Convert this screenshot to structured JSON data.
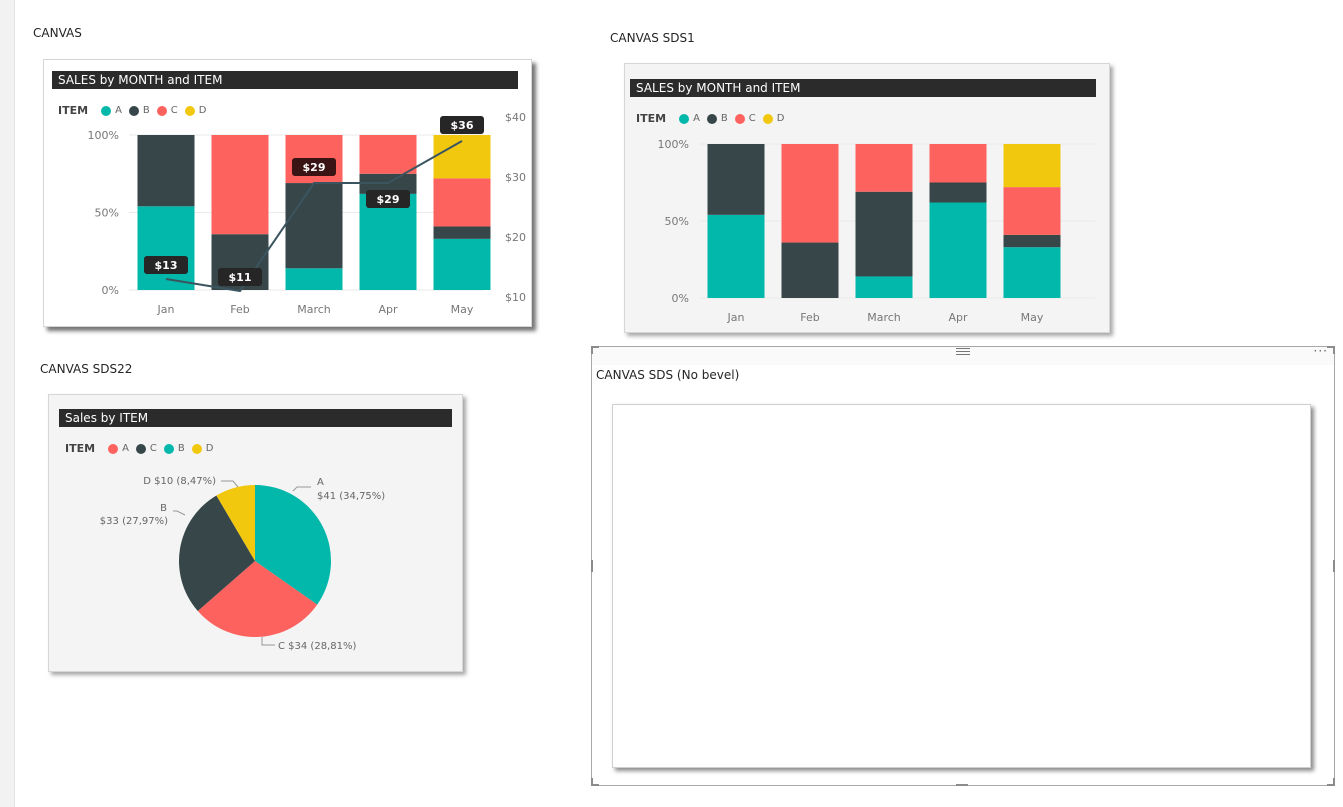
{
  "labels": {
    "canvas": "CANVAS",
    "canvas_sds1": "CANVAS SDS1",
    "canvas_sds22": "CANVAS SDS22",
    "canvas_sds_nobevel": "CANVAS SDS (No bevel)"
  },
  "more_options": "···",
  "colors": {
    "A": "#01b8aa",
    "B": "#374649",
    "C": "#fd625e",
    "D": "#f2c80f",
    "line": "#3b5560",
    "title_bg": "#2b2b2b"
  },
  "chart_data": [
    {
      "type": "bar",
      "stacked": "100%",
      "title": "SALES by MONTH and ITEM",
      "legend_title": "ITEM",
      "legend": [
        "A",
        "B",
        "C",
        "D"
      ],
      "categories": [
        "Jan",
        "Feb",
        "March",
        "Apr",
        "May"
      ],
      "y_ticks": [
        "100%",
        "50%",
        "0%"
      ],
      "y2_ticks": [
        "$40",
        "$30",
        "$20",
        "$10"
      ],
      "ylim": [
        0,
        100
      ],
      "y2lim": [
        10,
        40
      ],
      "series": [
        {
          "name": "A",
          "values": [
            54,
            0,
            14,
            62,
            33
          ]
        },
        {
          "name": "B",
          "values": [
            46,
            36,
            55,
            13,
            8
          ]
        },
        {
          "name": "C",
          "values": [
            0,
            64,
            31,
            25,
            31
          ]
        },
        {
          "name": "D",
          "values": [
            0,
            0,
            0,
            0,
            28
          ]
        }
      ],
      "line": {
        "values": [
          13,
          11,
          29,
          29,
          36
        ],
        "labels": [
          "$13",
          "$11",
          "$29",
          "$29",
          "$36"
        ]
      }
    },
    {
      "type": "bar",
      "stacked": "100%",
      "title": "SALES by MONTH and ITEM",
      "legend_title": "ITEM",
      "legend": [
        "A",
        "B",
        "C",
        "D"
      ],
      "categories": [
        "Jan",
        "Feb",
        "March",
        "Apr",
        "May"
      ],
      "y_ticks": [
        "100%",
        "50%",
        "0%"
      ],
      "ylim": [
        0,
        100
      ],
      "series": [
        {
          "name": "A",
          "values": [
            54,
            0,
            14,
            62,
            33
          ]
        },
        {
          "name": "B",
          "values": [
            46,
            36,
            55,
            13,
            8
          ]
        },
        {
          "name": "C",
          "values": [
            0,
            64,
            31,
            25,
            31
          ]
        },
        {
          "name": "D",
          "values": [
            0,
            0,
            0,
            0,
            28
          ]
        }
      ]
    },
    {
      "type": "pie",
      "title": "Sales by ITEM",
      "legend_title": "ITEM",
      "legend": [
        "A",
        "C",
        "B",
        "D"
      ],
      "slices": [
        {
          "name": "A",
          "value": 41,
          "label": "$41 (34,75%)"
        },
        {
          "name": "C",
          "value": 34,
          "label": "C $34 (28,81%)"
        },
        {
          "name": "B",
          "value": 33,
          "label": "$33 (27,97%)"
        },
        {
          "name": "D",
          "value": 10,
          "label": "D $10 (8,47%)"
        }
      ]
    }
  ]
}
